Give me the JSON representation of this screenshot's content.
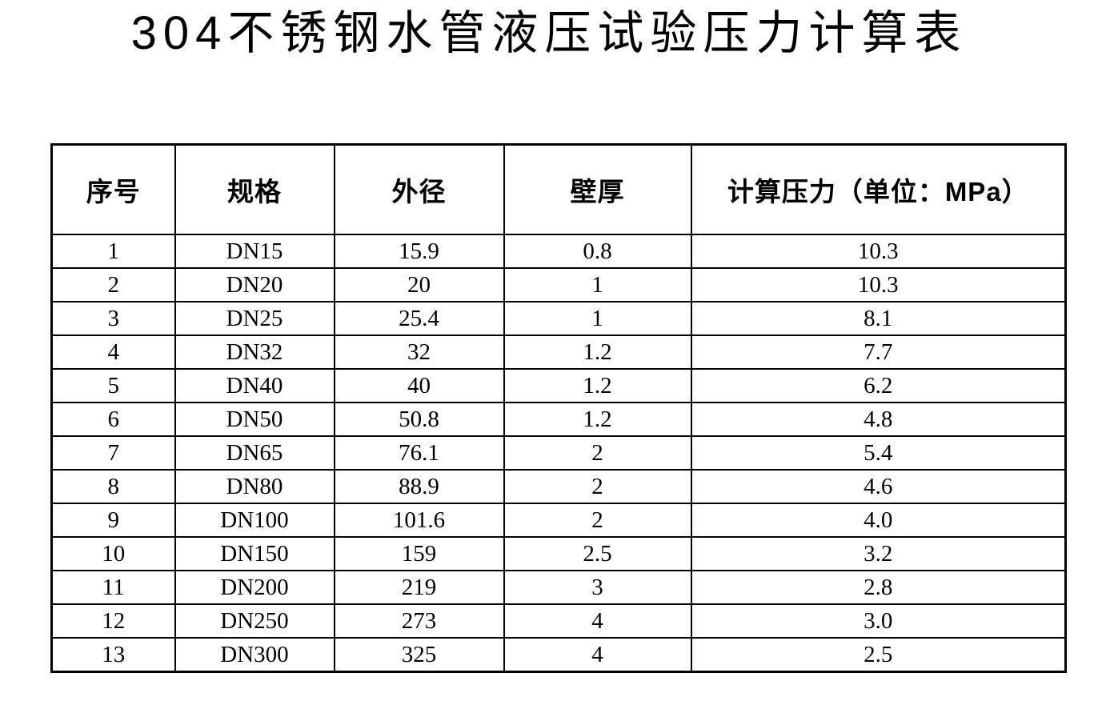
{
  "page": {
    "title": "304不锈钢水管液压试验压力计算表"
  },
  "colors": {
    "text": "#000000",
    "border": "#000000",
    "background": "#ffffff"
  },
  "table": {
    "headers": [
      "序号",
      "规格",
      "外径",
      "壁厚",
      "计算压力（单位：MPa）"
    ],
    "rows": [
      [
        "1",
        "DN15",
        "15.9",
        "0.8",
        "10.3"
      ],
      [
        "2",
        "DN20",
        "20",
        "1",
        "10.3"
      ],
      [
        "3",
        "DN25",
        "25.4",
        "1",
        "8.1"
      ],
      [
        "4",
        "DN32",
        "32",
        "1.2",
        "7.7"
      ],
      [
        "5",
        "DN40",
        "40",
        "1.2",
        "6.2"
      ],
      [
        "6",
        "DN50",
        "50.8",
        "1.2",
        "4.8"
      ],
      [
        "7",
        "DN65",
        "76.1",
        "2",
        "5.4"
      ],
      [
        "8",
        "DN80",
        "88.9",
        "2",
        "4.6"
      ],
      [
        "9",
        "DN100",
        "101.6",
        "2",
        "4.0"
      ],
      [
        "10",
        "DN150",
        "159",
        "2.5",
        "3.2"
      ],
      [
        "11",
        "DN200",
        "219",
        "3",
        "2.8"
      ],
      [
        "12",
        "DN250",
        "273",
        "4",
        "3.0"
      ],
      [
        "13",
        "DN300",
        "325",
        "4",
        "2.5"
      ]
    ]
  }
}
